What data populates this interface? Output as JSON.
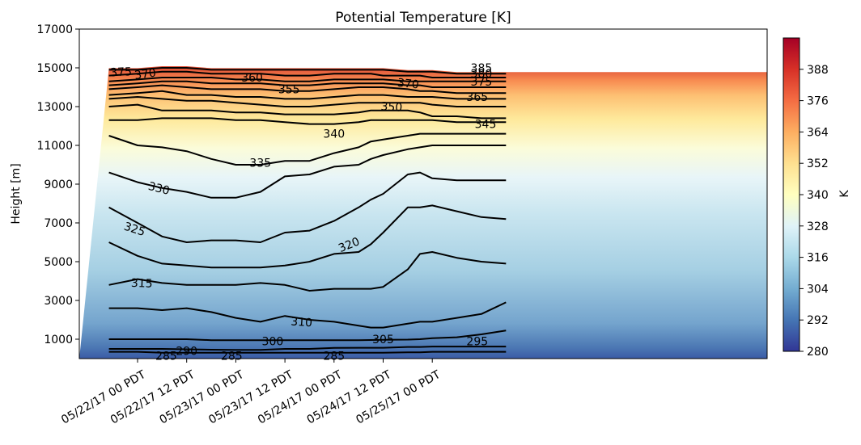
{
  "chart_data": {
    "type": "contour",
    "title": "Potential Temperature [K]",
    "xlabel": "",
    "ylabel": "Height [m]",
    "ylim": [
      0,
      17000
    ],
    "y_ticks": [
      1000,
      3000,
      5000,
      7000,
      9000,
      11000,
      13000,
      15000,
      17000
    ],
    "y_tick_labels": [
      "1000",
      "3000",
      "5000",
      "7000",
      "9000",
      "11000",
      "13000",
      "15000",
      "17000"
    ],
    "x_tick_labels": [
      "05/22/17 00 PDT",
      "05/22/17 12 PDT",
      "05/23/17 00 PDT",
      "05/23/17 12 PDT",
      "05/24/17 00 PDT",
      "05/24/17 12 PDT",
      "05/25/17 00 PDT"
    ],
    "colorbar": {
      "label": "K",
      "range": [
        280,
        400
      ],
      "ticks": [
        280,
        292,
        304,
        316,
        328,
        340,
        352,
        364,
        376,
        388
      ],
      "tick_labels": [
        "280",
        "292",
        "304",
        "316",
        "328",
        "340",
        "352",
        "364",
        "376",
        "388"
      ],
      "colormap": "RdYlBu_r"
    },
    "x_hours": [
      -7,
      0,
      6,
      12,
      18,
      24,
      30,
      36,
      42,
      48,
      54,
      57,
      60,
      66,
      69,
      72,
      78,
      84,
      90
    ],
    "contours": [
      {
        "level": 295,
        "heights": [
          350,
          350,
          300,
          300,
          300,
          300,
          300,
          300,
          300,
          300,
          300,
          300,
          300,
          320,
          320,
          350,
          350,
          350,
          350
        ]
      },
      {
        "level": 300,
        "heights": [
          500,
          500,
          500,
          480,
          460,
          450,
          450,
          500,
          500,
          550,
          560,
          560,
          560,
          600,
          600,
          620,
          620,
          620,
          620
        ]
      },
      {
        "level": 305,
        "heights": [
          1000,
          1000,
          1000,
          1000,
          950,
          950,
          950,
          950,
          950,
          950,
          950,
          960,
          970,
          980,
          1000,
          1050,
          1100,
          1250,
          1450
        ]
      },
      {
        "level": 310,
        "heights": [
          2600,
          2600,
          2500,
          2600,
          2400,
          2100,
          1900,
          2200,
          2000,
          1900,
          1700,
          1600,
          1600,
          1800,
          1900,
          1900,
          2100,
          2300,
          2900
        ]
      },
      {
        "level": 315,
        "heights": [
          3800,
          4100,
          3900,
          3800,
          3800,
          3800,
          3900,
          3800,
          3500,
          3600,
          3600,
          3600,
          3700,
          4600,
          5400,
          5500,
          5200,
          5000,
          4900
        ]
      },
      {
        "level": 320,
        "heights": [
          6000,
          5300,
          4900,
          4800,
          4700,
          4700,
          4700,
          4800,
          5000,
          5400,
          5500,
          5900,
          6500,
          7800,
          7800,
          7900,
          7600,
          7300,
          7200
        ]
      },
      {
        "level": 325,
        "heights": [
          7800,
          7000,
          6300,
          6000,
          6100,
          6100,
          6000,
          6500,
          6600,
          7100,
          7800,
          8200,
          8500,
          9500,
          9600,
          9300,
          9200,
          9200,
          9200
        ]
      },
      {
        "level": 330,
        "heights": [
          9600,
          9100,
          8800,
          8600,
          8300,
          8300,
          8600,
          9400,
          9500,
          9900,
          10000,
          10300,
          10500,
          10800,
          10900,
          11000,
          11000,
          11000,
          11000
        ]
      },
      {
        "level": 335,
        "heights": [
          11500,
          11000,
          10900,
          10700,
          10300,
          10000,
          10000,
          10200,
          10200,
          10600,
          10900,
          11200,
          11300,
          11500,
          11600,
          11600,
          11600,
          11600,
          11600
        ]
      },
      {
        "level": 340,
        "heights": [
          12300,
          12300,
          12400,
          12400,
          12400,
          12300,
          12300,
          12200,
          12100,
          12100,
          12200,
          12300,
          12300,
          12300,
          12300,
          12300,
          12200,
          12200,
          12200
        ]
      },
      {
        "level": 345,
        "heights": [
          13000,
          13100,
          12800,
          12800,
          12800,
          12700,
          12700,
          12600,
          12600,
          12600,
          12700,
          12800,
          12800,
          12800,
          12700,
          12500,
          12500,
          12400,
          12400
        ]
      },
      {
        "level": 350,
        "heights": [
          13400,
          13500,
          13400,
          13300,
          13300,
          13200,
          13100,
          13000,
          13000,
          13100,
          13200,
          13200,
          13200,
          13200,
          13200,
          13100,
          13000,
          13000,
          13000
        ]
      },
      {
        "level": 355,
        "heights": [
          13600,
          13700,
          13800,
          13600,
          13600,
          13500,
          13500,
          13400,
          13400,
          13500,
          13600,
          13600,
          13600,
          13500,
          13500,
          13500,
          13400,
          13400,
          13400
        ]
      },
      {
        "level": 360,
        "heights": [
          13900,
          14000,
          14100,
          14000,
          13900,
          13900,
          13900,
          13800,
          13800,
          13900,
          14000,
          14000,
          14000,
          13900,
          13800,
          13800,
          13700,
          13700,
          13700
        ]
      },
      {
        "level": 365,
        "heights": [
          14100,
          14200,
          14300,
          14300,
          14200,
          14200,
          14200,
          14100,
          14100,
          14200,
          14200,
          14200,
          14200,
          14100,
          14100,
          14000,
          14000,
          14000,
          14000
        ]
      },
      {
        "level": 370,
        "heights": [
          14300,
          14400,
          14500,
          14500,
          14500,
          14400,
          14400,
          14300,
          14300,
          14400,
          14400,
          14400,
          14400,
          14300,
          14300,
          14300,
          14300,
          14300,
          14300
        ]
      },
      {
        "level": 375,
        "heights": [
          14600,
          14700,
          14800,
          14800,
          14700,
          14700,
          14700,
          14600,
          14600,
          14700,
          14700,
          14700,
          14600,
          14600,
          14600,
          14500,
          14500,
          14500,
          14500
        ]
      },
      {
        "level": 380,
        "heights": [
          14900,
          14900,
          15000,
          15000,
          14900,
          14900,
          14900,
          14900,
          14900,
          14900,
          14900,
          14900,
          14900,
          14800,
          14800,
          14800,
          14700,
          14700,
          14700
        ]
      }
    ],
    "contour_labels": [
      {
        "text": "375",
        "x_hour": -4,
        "height": 14800,
        "angle": -3
      },
      {
        "text": "370",
        "x_hour": 2,
        "height": 14700,
        "angle": -8
      },
      {
        "text": "360",
        "x_hour": 28,
        "height": 14500,
        "angle": 0
      },
      {
        "text": "355",
        "x_hour": 37,
        "height": 13900,
        "angle": 0
      },
      {
        "text": "370",
        "x_hour": 66,
        "height": 14200,
        "angle": 6
      },
      {
        "text": "350",
        "x_hour": 62,
        "height": 13000,
        "angle": 4
      },
      {
        "text": "365",
        "x_hour": 83,
        "height": 13500,
        "angle": 0
      },
      {
        "text": "385",
        "x_hour": 84,
        "height": 15000,
        "angle": 0
      },
      {
        "text": "380",
        "x_hour": 84,
        "height": 14700,
        "angle": 0
      },
      {
        "text": "375",
        "x_hour": 84,
        "height": 14300,
        "angle": 0
      },
      {
        "text": "345",
        "x_hour": 85,
        "height": 12100,
        "angle": 0
      },
      {
        "text": "340",
        "x_hour": 48,
        "height": 11600,
        "angle": 0
      },
      {
        "text": "335",
        "x_hour": 30,
        "height": 10100,
        "angle": 0
      },
      {
        "text": "330",
        "x_hour": 5,
        "height": 8800,
        "angle": 14
      },
      {
        "text": "325",
        "x_hour": -1,
        "height": 6700,
        "angle": 18
      },
      {
        "text": "320",
        "x_hour": 52,
        "height": 5900,
        "angle": -22
      },
      {
        "text": "315",
        "x_hour": 1,
        "height": 3900,
        "angle": 2
      },
      {
        "text": "310",
        "x_hour": 40,
        "height": 1900,
        "angle": 4
      },
      {
        "text": "305",
        "x_hour": 60,
        "height": 1000,
        "angle": 0
      },
      {
        "text": "300",
        "x_hour": 33,
        "height": 900,
        "angle": 0
      },
      {
        "text": "295",
        "x_hour": 83,
        "height": 900,
        "angle": 0
      },
      {
        "text": "290",
        "x_hour": 12,
        "height": 400,
        "angle": 0
      },
      {
        "text": "285",
        "x_hour": 7,
        "height": 150,
        "angle": 0
      },
      {
        "text": "285",
        "x_hour": 23,
        "height": 150,
        "angle": 0
      },
      {
        "text": "285",
        "x_hour": 48,
        "height": 150,
        "angle": 0
      }
    ]
  }
}
